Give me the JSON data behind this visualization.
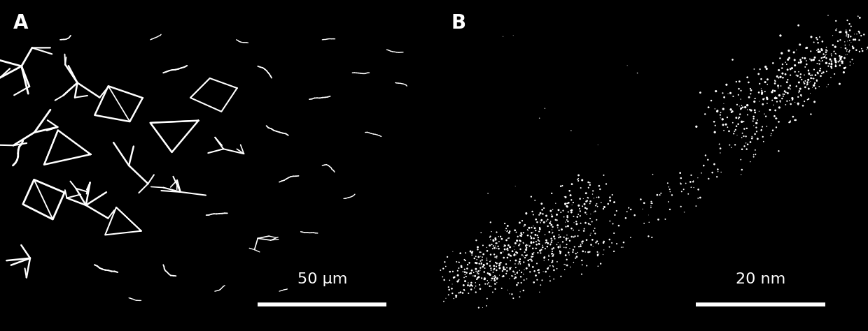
{
  "panel_A_label": "A",
  "panel_B_label": "B",
  "scale_bar_A_text": "50 μm",
  "scale_bar_B_text": "20 nm",
  "bg_color": "#000000",
  "fg_color": "#ffffff",
  "label_fontsize": 20,
  "scalebar_fontsize": 16,
  "fig_width": 12.4,
  "fig_height": 4.74,
  "seed_A": 42,
  "seed_B": 77,
  "dpi": 100
}
